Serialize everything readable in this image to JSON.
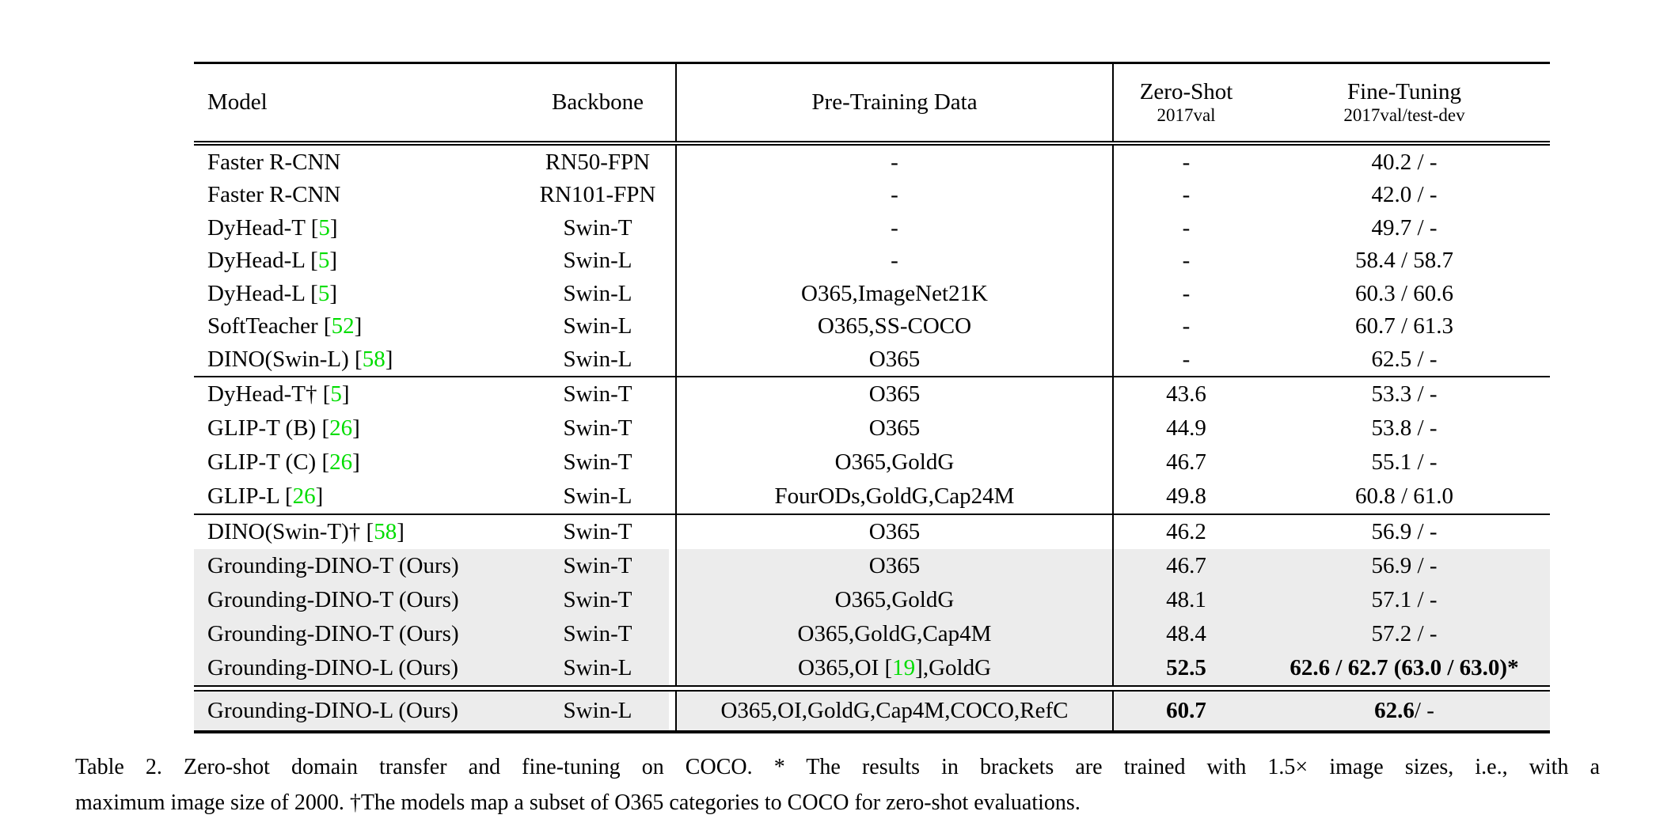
{
  "colors": {
    "citation_green": "#00dd00",
    "row_highlight": "#ececec",
    "text": "#000000"
  },
  "table": {
    "header": [
      {
        "label": "Model"
      },
      {
        "label": "Backbone"
      },
      {
        "label": "Pre-Training Data"
      },
      {
        "label": "Zero-Shot",
        "sub": "2017val"
      },
      {
        "label": "Fine-Tuning",
        "sub": "2017val/test-dev"
      }
    ],
    "groups": [
      {
        "rows": [
          {
            "shaded": false,
            "model": "Faster R-CNN",
            "backbone": "RN50-FPN",
            "pretrain": "-",
            "zeroshot": "-",
            "finetune": "40.2 / -"
          },
          {
            "shaded": false,
            "model": "Faster R-CNN",
            "backbone": "RN101-FPN",
            "pretrain": "-",
            "zeroshot": "-",
            "finetune": "42.0 / -"
          },
          {
            "shaded": false,
            "model": [
              {
                "t": "DyHead-T ["
              },
              {
                "t": "5",
                "green": true
              },
              {
                "t": "]"
              }
            ],
            "backbone": "Swin-T",
            "pretrain": "-",
            "zeroshot": "-",
            "finetune": "49.7 / -"
          },
          {
            "shaded": false,
            "model": [
              {
                "t": "DyHead-L ["
              },
              {
                "t": "5",
                "green": true
              },
              {
                "t": "]"
              }
            ],
            "backbone": "Swin-L",
            "pretrain": "-",
            "zeroshot": "-",
            "finetune": "58.4 / 58.7"
          },
          {
            "shaded": false,
            "model": [
              {
                "t": "DyHead-L ["
              },
              {
                "t": "5",
                "green": true
              },
              {
                "t": "]"
              }
            ],
            "backbone": "Swin-L",
            "pretrain": "O365,ImageNet21K",
            "zeroshot": "-",
            "finetune": "60.3 / 60.6"
          },
          {
            "shaded": false,
            "model": [
              {
                "t": "SoftTeacher ["
              },
              {
                "t": "52",
                "green": true
              },
              {
                "t": "]"
              }
            ],
            "backbone": "Swin-L",
            "pretrain": "O365,SS-COCO",
            "zeroshot": "-",
            "finetune": "60.7 / 61.3"
          },
          {
            "shaded": false,
            "model": [
              {
                "t": "DINO(Swin-L) ["
              },
              {
                "t": "58",
                "green": true
              },
              {
                "t": "]"
              }
            ],
            "backbone": "Swin-L",
            "pretrain": "O365",
            "zeroshot": "-",
            "finetune": "62.5 / -"
          }
        ]
      },
      {
        "rows": [
          {
            "shaded": false,
            "model": [
              {
                "t": "DyHead-T† ["
              },
              {
                "t": "5",
                "green": true
              },
              {
                "t": "]"
              }
            ],
            "backbone": "Swin-T",
            "pretrain": "O365",
            "zeroshot": "43.6",
            "finetune": "53.3 / -"
          },
          {
            "shaded": false,
            "model": [
              {
                "t": "GLIP-T (B) ["
              },
              {
                "t": "26",
                "green": true
              },
              {
                "t": "]"
              }
            ],
            "backbone": "Swin-T",
            "pretrain": "O365",
            "zeroshot": "44.9",
            "finetune": "53.8 / -"
          },
          {
            "shaded": false,
            "model": [
              {
                "t": "GLIP-T (C) ["
              },
              {
                "t": "26",
                "green": true
              },
              {
                "t": "]"
              }
            ],
            "backbone": "Swin-T",
            "pretrain": "O365,GoldG",
            "zeroshot": "46.7",
            "finetune": "55.1 / -"
          },
          {
            "shaded": false,
            "model": [
              {
                "t": "GLIP-L ["
              },
              {
                "t": "26",
                "green": true
              },
              {
                "t": "]"
              }
            ],
            "backbone": "Swin-L",
            "pretrain": "FourODs,GoldG,Cap24M",
            "zeroshot": "49.8",
            "finetune": "60.8 / 61.0"
          }
        ]
      },
      {
        "rows": [
          {
            "shaded": false,
            "model": [
              {
                "t": "DINO(Swin-T)† ["
              },
              {
                "t": "58",
                "green": true
              },
              {
                "t": "]"
              }
            ],
            "backbone": "Swin-T",
            "pretrain": "O365",
            "zeroshot": "46.2",
            "finetune": "56.9 / -"
          },
          {
            "shaded": true,
            "model": "Grounding-DINO-T (Ours)",
            "backbone": "Swin-T",
            "pretrain": "O365",
            "zeroshot": "46.7",
            "finetune": "56.9 / -"
          },
          {
            "shaded": true,
            "model": "Grounding-DINO-T (Ours)",
            "backbone": "Swin-T",
            "pretrain": "O365,GoldG",
            "zeroshot": "48.1",
            "finetune": "57.1 / -"
          },
          {
            "shaded": true,
            "model": "Grounding-DINO-T (Ours)",
            "backbone": "Swin-T",
            "pretrain": "O365,GoldG,Cap4M",
            "zeroshot": "48.4",
            "finetune": "57.2 / -"
          },
          {
            "shaded": true,
            "model": "Grounding-DINO-L (Ours)",
            "backbone": "Swin-L",
            "pretrain": [
              {
                "t": "O365,OI ["
              },
              {
                "t": "19",
                "green": true
              },
              {
                "t": "],GoldG"
              }
            ],
            "zeroshot": [
              {
                "t": "52.5",
                "bold": true
              }
            ],
            "finetune": [
              {
                "t": "62.6 / 62.7 (63.0 / 63.0)*",
                "bold": true
              }
            ]
          }
        ]
      },
      {
        "rows": [
          {
            "shaded": true,
            "model": "Grounding-DINO-L (Ours)",
            "backbone": "Swin-L",
            "pretrain": "O365,OI,GoldG,Cap4M,COCO,RefC",
            "zeroshot": [
              {
                "t": "60.7",
                "bold": true
              }
            ],
            "finetune": [
              {
                "t": "62.6",
                "bold": true
              },
              {
                "t": " / -"
              }
            ]
          }
        ]
      }
    ]
  },
  "caption": {
    "line1": "Table 2.  Zero-shot domain transfer and fine-tuning on COCO. * The results in brackets are trained with 1.5× image sizes, i.e., with a",
    "line2": "maximum image size of 2000. †The models map a subset of O365 categories to COCO for zero-shot evaluations."
  }
}
